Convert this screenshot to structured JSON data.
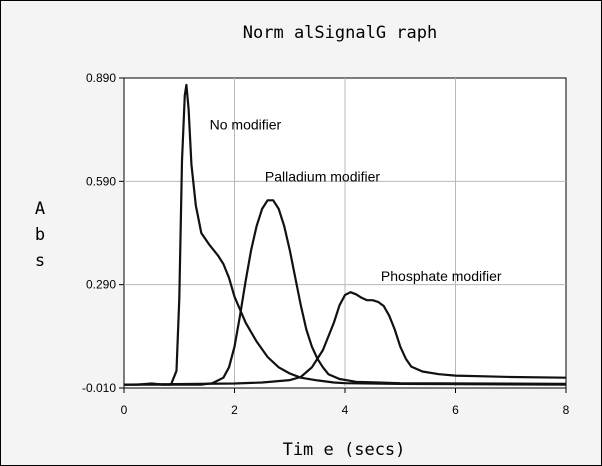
{
  "chart_data": {
    "type": "line",
    "title": "Norm alSignalG raph",
    "xlabel": "Tim e (secs)",
    "ylabel": "A\nb\ns",
    "xlim": [
      0,
      8
    ],
    "ylim": [
      -0.01,
      0.89
    ],
    "x_ticks": [
      "0",
      "2",
      "4",
      "6",
      "8"
    ],
    "x_tick_values": [
      0,
      2,
      4,
      6,
      8
    ],
    "y_ticks": [
      "-0.010",
      "0.290",
      "0.590",
      "0.890"
    ],
    "y_tick_values": [
      -0.01,
      0.29,
      0.59,
      0.89
    ],
    "grid": true,
    "annotations": [
      {
        "text": "No modifier",
        "x": 1.55,
        "y": 0.74
      },
      {
        "text": "Palladium modifier",
        "x": 2.55,
        "y": 0.59
      },
      {
        "text": "Phosphate modifier",
        "x": 4.65,
        "y": 0.3
      }
    ],
    "series": [
      {
        "points": [
          [
            0.0,
            0.0
          ],
          [
            0.25,
            0.0
          ],
          [
            0.5,
            0.003
          ],
          [
            0.7,
            0.0
          ],
          [
            0.85,
            0.0
          ],
          [
            0.95,
            0.04
          ],
          [
            1.0,
            0.25
          ],
          [
            1.05,
            0.65
          ],
          [
            1.1,
            0.84
          ],
          [
            1.13,
            0.87
          ],
          [
            1.17,
            0.8
          ],
          [
            1.22,
            0.64
          ],
          [
            1.3,
            0.52
          ],
          [
            1.4,
            0.44
          ],
          [
            1.55,
            0.405
          ],
          [
            1.7,
            0.375
          ],
          [
            1.8,
            0.35
          ],
          [
            1.9,
            0.31
          ],
          [
            2.0,
            0.255
          ],
          [
            2.2,
            0.18
          ],
          [
            2.4,
            0.125
          ],
          [
            2.6,
            0.08
          ],
          [
            2.8,
            0.05
          ],
          [
            3.0,
            0.032
          ],
          [
            3.2,
            0.02
          ],
          [
            3.5,
            0.012
          ],
          [
            3.8,
            0.006
          ],
          [
            4.0,
            0.004
          ],
          [
            5.0,
            0.002
          ],
          [
            6.0,
            0.001
          ],
          [
            8.0,
            0.0
          ]
        ]
      },
      {
        "points": [
          [
            0.0,
            0.0
          ],
          [
            1.4,
            0.0
          ],
          [
            1.6,
            0.004
          ],
          [
            1.8,
            0.02
          ],
          [
            1.9,
            0.05
          ],
          [
            2.0,
            0.11
          ],
          [
            2.1,
            0.2
          ],
          [
            2.2,
            0.3
          ],
          [
            2.3,
            0.39
          ],
          [
            2.4,
            0.46
          ],
          [
            2.5,
            0.51
          ],
          [
            2.6,
            0.535
          ],
          [
            2.7,
            0.535
          ],
          [
            2.8,
            0.51
          ],
          [
            2.9,
            0.46
          ],
          [
            3.0,
            0.39
          ],
          [
            3.1,
            0.31
          ],
          [
            3.2,
            0.23
          ],
          [
            3.3,
            0.16
          ],
          [
            3.4,
            0.11
          ],
          [
            3.5,
            0.075
          ],
          [
            3.6,
            0.05
          ],
          [
            3.7,
            0.03
          ],
          [
            3.9,
            0.016
          ],
          [
            4.2,
            0.008
          ],
          [
            5.0,
            0.004
          ],
          [
            8.0,
            0.002
          ]
        ]
      },
      {
        "points": [
          [
            0.0,
            0.0
          ],
          [
            2.0,
            0.003
          ],
          [
            2.5,
            0.006
          ],
          [
            3.0,
            0.013
          ],
          [
            3.2,
            0.022
          ],
          [
            3.4,
            0.05
          ],
          [
            3.6,
            0.1
          ],
          [
            3.8,
            0.18
          ],
          [
            3.9,
            0.23
          ],
          [
            4.0,
            0.26
          ],
          [
            4.1,
            0.268
          ],
          [
            4.2,
            0.262
          ],
          [
            4.3,
            0.252
          ],
          [
            4.4,
            0.245
          ],
          [
            4.5,
            0.245
          ],
          [
            4.6,
            0.24
          ],
          [
            4.7,
            0.228
          ],
          [
            4.8,
            0.2
          ],
          [
            4.9,
            0.16
          ],
          [
            5.0,
            0.11
          ],
          [
            5.1,
            0.075
          ],
          [
            5.2,
            0.052
          ],
          [
            5.4,
            0.038
          ],
          [
            5.7,
            0.03
          ],
          [
            6.0,
            0.026
          ],
          [
            7.0,
            0.022
          ],
          [
            8.0,
            0.02
          ]
        ]
      }
    ]
  }
}
